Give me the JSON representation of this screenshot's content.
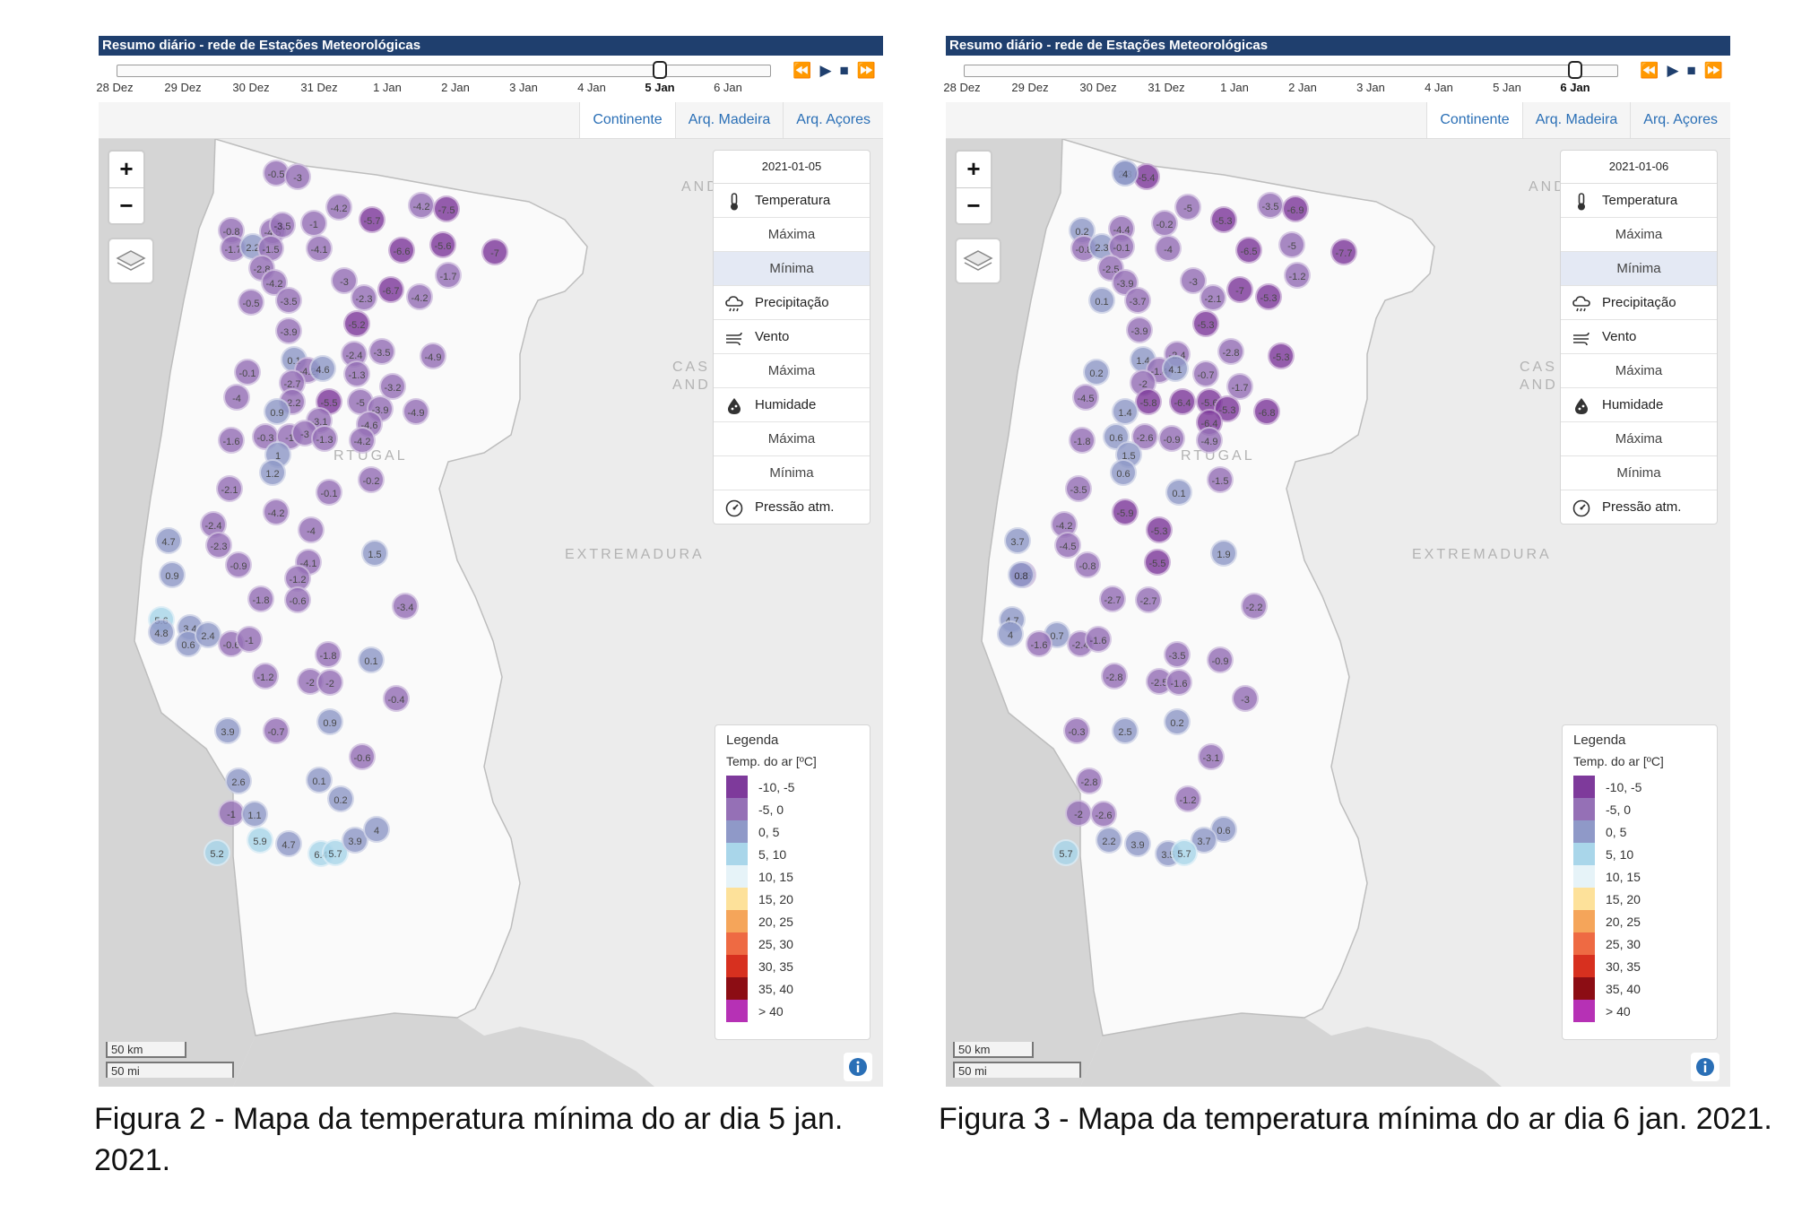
{
  "colors": {
    "titlebar": "#1f3f6e",
    "link": "#2a6fb6",
    "bins": [
      "#7e3a9b",
      "#9570b6",
      "#8f99c8",
      "#a9d6ea",
      "#e6f3f8",
      "#fde19a",
      "#f5a55a",
      "#ee6a43",
      "#d7301f",
      "#8c0d14",
      "#b631b5"
    ]
  },
  "left": {
    "title": "Resumo diário - rede de Estações Meteorológicas",
    "timeline": {
      "ticks": [
        "28 Dez",
        "29 Dez",
        "30 Dez",
        "31 Dez",
        "1 Jan",
        "2 Jan",
        "3 Jan",
        "4 Jan",
        "5 Jan",
        "6 Jan"
      ],
      "selected_index": 8
    },
    "tabs": [
      "Continente",
      "Arq. Madeira",
      "Arq. Açores"
    ],
    "date": "2021-01-05",
    "variables": [
      {
        "label": "Temperatura",
        "kind": "main",
        "icon": "thermometer-icon"
      },
      {
        "label": "Máxima",
        "kind": "sub"
      },
      {
        "label": "Mínima",
        "kind": "sub",
        "selected": true
      },
      {
        "label": "Precipitação",
        "kind": "main",
        "icon": "rain-cloud-icon"
      },
      {
        "label": "Vento",
        "kind": "main",
        "icon": "wind-icon"
      },
      {
        "label": "Máxima",
        "kind": "sub"
      },
      {
        "label": "Humidade",
        "kind": "main",
        "icon": "water-drop-icon"
      },
      {
        "label": "Máxima",
        "kind": "sub"
      },
      {
        "label": "Mínima",
        "kind": "sub"
      },
      {
        "label": "Pressão atm.",
        "kind": "main",
        "icon": "gauge-icon"
      }
    ],
    "legend": {
      "title": "Legenda",
      "subtitle": "Temp. do ar [ºC]",
      "items": [
        "-10, -5",
        "-5, 0",
        "0, 5",
        "5, 10",
        "10, 15",
        "15, 20",
        "20, 25",
        "25, 30",
        "30, 35",
        "35, 40",
        "> 40"
      ]
    },
    "scale": {
      "km": "50 km",
      "mi": "50 mi"
    },
    "map_labels": [
      "AND LEON",
      "CAS AND",
      "RTUGAL",
      "EXTREMADURA"
    ],
    "stations": [
      "-0.5",
      "-3",
      "-4.2",
      "-5.7",
      "-4.2",
      "-7.5",
      "-0.8",
      "-4.5",
      "-3.5",
      "-1",
      "-1.7",
      "2.2",
      "-1.5",
      "-4.1",
      "-6.6",
      "-5.6",
      "-7",
      "-2.8",
      "-4.2",
      "-3",
      "-2.3",
      "-6.7",
      "-4.2",
      "-1.7",
      "-0.5",
      "-3.5",
      "-5.2",
      "-3.9",
      "0.1",
      "-4.2",
      "-2.4",
      "-3.5",
      "-4.9",
      "-0.1",
      "-2.7",
      "4.6",
      "-1.3",
      "-4",
      "-2.2",
      "-5.5",
      "-5",
      "-3.2",
      "-3.9",
      "0.9",
      "-3.1",
      "-4.6",
      "-4.9",
      "-1.6",
      "-0.3",
      "-1",
      "-3",
      "-1.3",
      "-4.2",
      "1",
      "1.2",
      "-0.2",
      "-2.1",
      "-0.1",
      "-4.2",
      "-2.4",
      "-2.3",
      "-4",
      "4.7",
      "-0.9",
      "-4.1",
      "1.5",
      "0.9",
      "-1.2",
      "-1.8",
      "-0.6",
      "-3.4",
      "5.6",
      "3.4",
      "4.8",
      "0.6",
      "2.4",
      "-0.6",
      "-1",
      "-1.8",
      "0.1",
      "-1.2",
      "-2",
      "-2",
      "-0.4",
      "3.9",
      "-0.7",
      "0.9",
      "-0.6",
      "2.6",
      "0.1",
      "0.2",
      "-1",
      "1.1",
      "5.2",
      "5.9",
      "4.7",
      "6.4",
      "5.7",
      "3.9",
      "4"
    ]
  },
  "right": {
    "title": "Resumo diário - rede de Estações Meteorológicas",
    "timeline": {
      "ticks": [
        "28 Dez",
        "29 Dez",
        "30 Dez",
        "31 Dez",
        "1 Jan",
        "2 Jan",
        "3 Jan",
        "4 Jan",
        "5 Jan",
        "6 Jan"
      ],
      "selected_index": 9
    },
    "tabs": [
      "Continente",
      "Arq. Madeira",
      "Arq. Açores"
    ],
    "date": "2021-01-06",
    "variables": [
      {
        "label": "Temperatura",
        "kind": "main",
        "icon": "thermometer-icon"
      },
      {
        "label": "Máxima",
        "kind": "sub"
      },
      {
        "label": "Mínima",
        "kind": "sub",
        "selected": true
      },
      {
        "label": "Precipitação",
        "kind": "main",
        "icon": "rain-cloud-icon"
      },
      {
        "label": "Vento",
        "kind": "main",
        "icon": "wind-icon"
      },
      {
        "label": "Máxima",
        "kind": "sub"
      },
      {
        "label": "Humidade",
        "kind": "main",
        "icon": "water-drop-icon"
      },
      {
        "label": "Máxima",
        "kind": "sub"
      },
      {
        "label": "Mínima",
        "kind": "sub"
      },
      {
        "label": "Pressão atm.",
        "kind": "main",
        "icon": "gauge-icon"
      }
    ],
    "legend": {
      "title": "Legenda",
      "subtitle": "Temp. do ar [ºC]",
      "items": [
        "-10, -5",
        "-5, 0",
        "0, 5",
        "5, 10",
        "10, 15",
        "15, 20",
        "20, 25",
        "25, 30",
        "30, 35",
        "35, 40",
        "> 40"
      ]
    },
    "scale": {
      "km": "50 km",
      "mi": "50 mi"
    },
    "map_labels": [
      "AND LEON",
      "CAS AND",
      "RTUGAL",
      "EXTREMADURA"
    ],
    "stations": [
      "2.3",
      "-5.4",
      "-5",
      "-5.3",
      "-3.5",
      "-6.9",
      "0.2",
      "-4.4",
      "-0.2",
      "-0.8",
      "2.3",
      "-0.1",
      "-4",
      "-6.5",
      "-5",
      "-7.7",
      "-2.5",
      "-3.9",
      "-3",
      "-2.1",
      "-7",
      "-5.3",
      "-1.2",
      "0.1",
      "-3.7",
      "-3.9",
      "-5.3",
      "1.4",
      "-2.4",
      "-2.8",
      "-5.3",
      "0.2",
      "-1.4",
      "4.1",
      "-0.7",
      "-2",
      "-1.7",
      "-4.5",
      "-5.8",
      "-6.4",
      "-5.6",
      "-5.3",
      "-6.8",
      "1.4",
      "-6.4",
      "-1.8",
      "0.6",
      "-2.6",
      "-0.9",
      "-4.9",
      "1.5",
      "0.6",
      "-1.5",
      "-3.5",
      "0.1",
      "-5.9",
      "-4.2",
      "-5.3",
      "3.7",
      "-4.5",
      "-0.8",
      "-5.5",
      "-3.5",
      "1.9",
      "0.8",
      "-2.7",
      "-2.7",
      "-2.2",
      "4.7",
      "4",
      "0.7",
      "-1.6",
      "-2.4",
      "-1.6",
      "-3.5",
      "-0.9",
      "-2.8",
      "-2.5",
      "-1.6",
      "-3",
      "-0.3",
      "2.5",
      "-3.1",
      "-2.8",
      "0.2",
      "-1.2",
      "-2",
      "-2.6",
      "0.6",
      "2.2",
      "3.9",
      "3.7",
      "3.5",
      "5.7",
      "5.7",
      "4"
    ]
  },
  "captions": {
    "left": "Figura 2 - Mapa da temperatura mínima do ar dia 5 jan. 2021.",
    "right": "Figura 3 - Mapa da temperatura mínima do ar dia 6 jan. 2021."
  }
}
